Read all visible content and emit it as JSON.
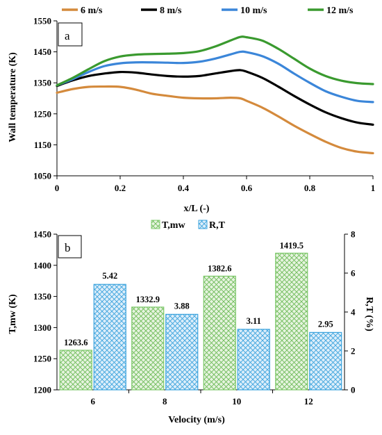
{
  "chart_data": [
    {
      "panel_label": "a",
      "type": "line",
      "xlabel": "x/L (-)",
      "ylabel": "Wall temperature (K)",
      "xlim": [
        0,
        1
      ],
      "ylim": [
        1050,
        1550
      ],
      "xticks": [
        0,
        0.2,
        0.4,
        0.6,
        0.8,
        1
      ],
      "xtick_labels": [
        "0",
        "0.2",
        "0.4",
        "0.6",
        "0.8",
        "1"
      ],
      "yticks": [
        1050,
        1150,
        1250,
        1350,
        1450,
        1550
      ],
      "ytick_labels": [
        "1050",
        "1150",
        "1250",
        "1350",
        "1450",
        "1550"
      ],
      "grid": false,
      "legend_position": "top",
      "x": [
        0,
        0.05,
        0.1,
        0.15,
        0.2,
        0.25,
        0.3,
        0.35,
        0.4,
        0.45,
        0.5,
        0.55,
        0.58,
        0.6,
        0.65,
        0.7,
        0.75,
        0.8,
        0.85,
        0.9,
        0.95,
        1.0
      ],
      "series": [
        {
          "name": "6 m/s",
          "color": "#d48a3c",
          "values": [
            1318,
            1330,
            1337,
            1338,
            1337,
            1328,
            1315,
            1308,
            1302,
            1300,
            1300,
            1302,
            1300,
            1292,
            1270,
            1242,
            1212,
            1185,
            1160,
            1140,
            1128,
            1123
          ]
        },
        {
          "name": "8 m/s",
          "color": "#000000",
          "values": [
            1340,
            1358,
            1372,
            1380,
            1385,
            1383,
            1377,
            1372,
            1370,
            1372,
            1380,
            1388,
            1391,
            1386,
            1366,
            1338,
            1308,
            1280,
            1255,
            1236,
            1222,
            1215
          ]
        },
        {
          "name": "10 m/s",
          "color": "#3b86d9",
          "values": [
            1342,
            1362,
            1385,
            1404,
            1413,
            1416,
            1416,
            1415,
            1414,
            1418,
            1428,
            1442,
            1450,
            1449,
            1436,
            1412,
            1380,
            1350,
            1323,
            1305,
            1292,
            1288
          ]
        },
        {
          "name": "12 m/s",
          "color": "#3a9a2f",
          "values": [
            1342,
            1366,
            1394,
            1420,
            1435,
            1441,
            1443,
            1444,
            1446,
            1452,
            1467,
            1487,
            1498,
            1497,
            1486,
            1460,
            1428,
            1396,
            1372,
            1357,
            1349,
            1346
          ]
        }
      ]
    },
    {
      "panel_label": "b",
      "type": "bar",
      "xlabel": "Velocity (m/s)",
      "ylabel_left": "T,mw (K)",
      "ylabel_right": "R,T (%)",
      "categories": [
        "6",
        "8",
        "10",
        "12"
      ],
      "ylim_left": [
        1200,
        1450
      ],
      "ylim_right": [
        0,
        8
      ],
      "yticks_left": [
        "1200",
        "1250",
        "1300",
        "1350",
        "1400",
        "1450"
      ],
      "yticks_right": [
        "0",
        "2",
        "4",
        "6",
        "8"
      ],
      "legend_position": "top",
      "series": [
        {
          "name": "T,mw",
          "axis": "left",
          "color": "#7dc86a",
          "values": [
            1263.6,
            1332.9,
            1382.6,
            1419.5
          ],
          "labels": [
            "1263.6",
            "1332.9",
            "1382.6",
            "1419.5"
          ]
        },
        {
          "name": "R,T",
          "axis": "right",
          "color": "#3aa3dd",
          "values": [
            5.42,
            3.88,
            3.11,
            2.95
          ],
          "labels": [
            "5.42",
            "3.88",
            "3.11",
            "2.95"
          ]
        }
      ]
    }
  ]
}
